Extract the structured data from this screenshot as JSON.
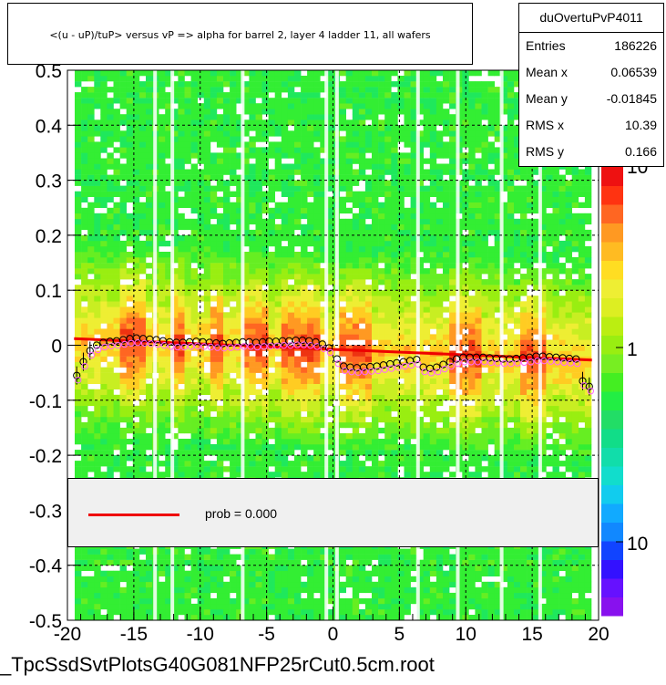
{
  "title": "<(u - uP)/tuP> versus   vP => alpha for barrel 2, layer 4 ladder 11, all wafers",
  "stats": {
    "name": "duOvertuPvP4011",
    "rows": [
      {
        "label": "Entries",
        "value": "186226"
      },
      {
        "label": "Mean x",
        "value": "0.06539"
      },
      {
        "label": "Mean y",
        "value": "-0.01845"
      },
      {
        "label": "RMS x",
        "value": "10.39"
      },
      {
        "label": "RMS y",
        "value": "0.166"
      }
    ]
  },
  "legend": {
    "fit_label": "prob = 0.000"
  },
  "filename": "_TpcSsdSvtPlotsG40G081NFP25rCut0.5cm.root",
  "colors": {
    "fit_line": "#ee0000",
    "legend_bg": "#f0f0f0",
    "background": "#ffffff"
  },
  "chart_data": {
    "type": "heatmap",
    "xlim": [
      -20,
      20
    ],
    "ylim": [
      -0.5,
      0.5
    ],
    "x_ticks": [
      "-20",
      "-15",
      "-10",
      "-5",
      "0",
      "5",
      "10",
      "15",
      "20"
    ],
    "y_ticks": [
      "-0.5",
      "-0.4",
      "-0.3",
      "-0.2",
      "-0.1",
      "0",
      "0.1",
      "0.2",
      "0.3",
      "0.4",
      "0.5"
    ],
    "z_scale": "log",
    "z_tick_labels": [
      "10",
      "1",
      "10"
    ],
    "grid": true,
    "fit_line": {
      "x": [
        -19.5,
        19.5
      ],
      "y": [
        0.012,
        -0.027
      ]
    },
    "profile": {
      "x": [
        -19.3,
        -18.8,
        -18.3,
        -17.8,
        -17.3,
        -16.8,
        -16.3,
        -15.8,
        -15.3,
        -14.8,
        -14.3,
        -13.8,
        -13.3,
        -12.8,
        -12.3,
        -11.8,
        -11.3,
        -10.8,
        -10.3,
        -9.8,
        -9.3,
        -8.8,
        -8.3,
        -7.8,
        -7.3,
        -6.8,
        -6.3,
        -5.8,
        -5.3,
        -4.8,
        -4.3,
        -3.8,
        -3.3,
        -2.8,
        -2.3,
        -1.8,
        -1.3,
        -0.8,
        -0.3,
        0.3,
        0.8,
        1.3,
        1.8,
        2.3,
        2.8,
        3.3,
        3.8,
        4.3,
        4.8,
        5.3,
        5.8,
        6.3,
        6.8,
        7.3,
        7.8,
        8.3,
        8.8,
        9.3,
        9.8,
        10.3,
        10.8,
        11.3,
        11.8,
        12.3,
        12.8,
        13.3,
        13.8,
        14.3,
        14.8,
        15.3,
        15.8,
        16.3,
        16.8,
        17.3,
        17.8,
        18.3,
        18.8,
        19.3
      ],
      "y": [
        -0.055,
        -0.03,
        -0.01,
        0.0,
        0.005,
        0.007,
        0.008,
        0.01,
        0.012,
        0.013,
        0.012,
        0.011,
        0.01,
        0.008,
        0.006,
        0.005,
        0.005,
        0.006,
        0.007,
        0.006,
        0.005,
        0.004,
        0.003,
        0.004,
        0.005,
        0.006,
        0.006,
        0.005,
        0.006,
        0.007,
        0.007,
        0.008,
        0.008,
        0.009,
        0.009,
        0.008,
        0.006,
        0.002,
        -0.005,
        -0.025,
        -0.038,
        -0.04,
        -0.041,
        -0.04,
        -0.039,
        -0.038,
        -0.036,
        -0.034,
        -0.032,
        -0.03,
        -0.028,
        -0.026,
        -0.04,
        -0.042,
        -0.04,
        -0.035,
        -0.03,
        -0.025,
        -0.022,
        -0.022,
        -0.022,
        -0.022,
        -0.023,
        -0.024,
        -0.025,
        -0.025,
        -0.024,
        -0.023,
        -0.022,
        -0.02,
        -0.02,
        -0.021,
        -0.022,
        -0.023,
        -0.024,
        -0.025,
        -0.065,
        -0.075
      ]
    }
  }
}
